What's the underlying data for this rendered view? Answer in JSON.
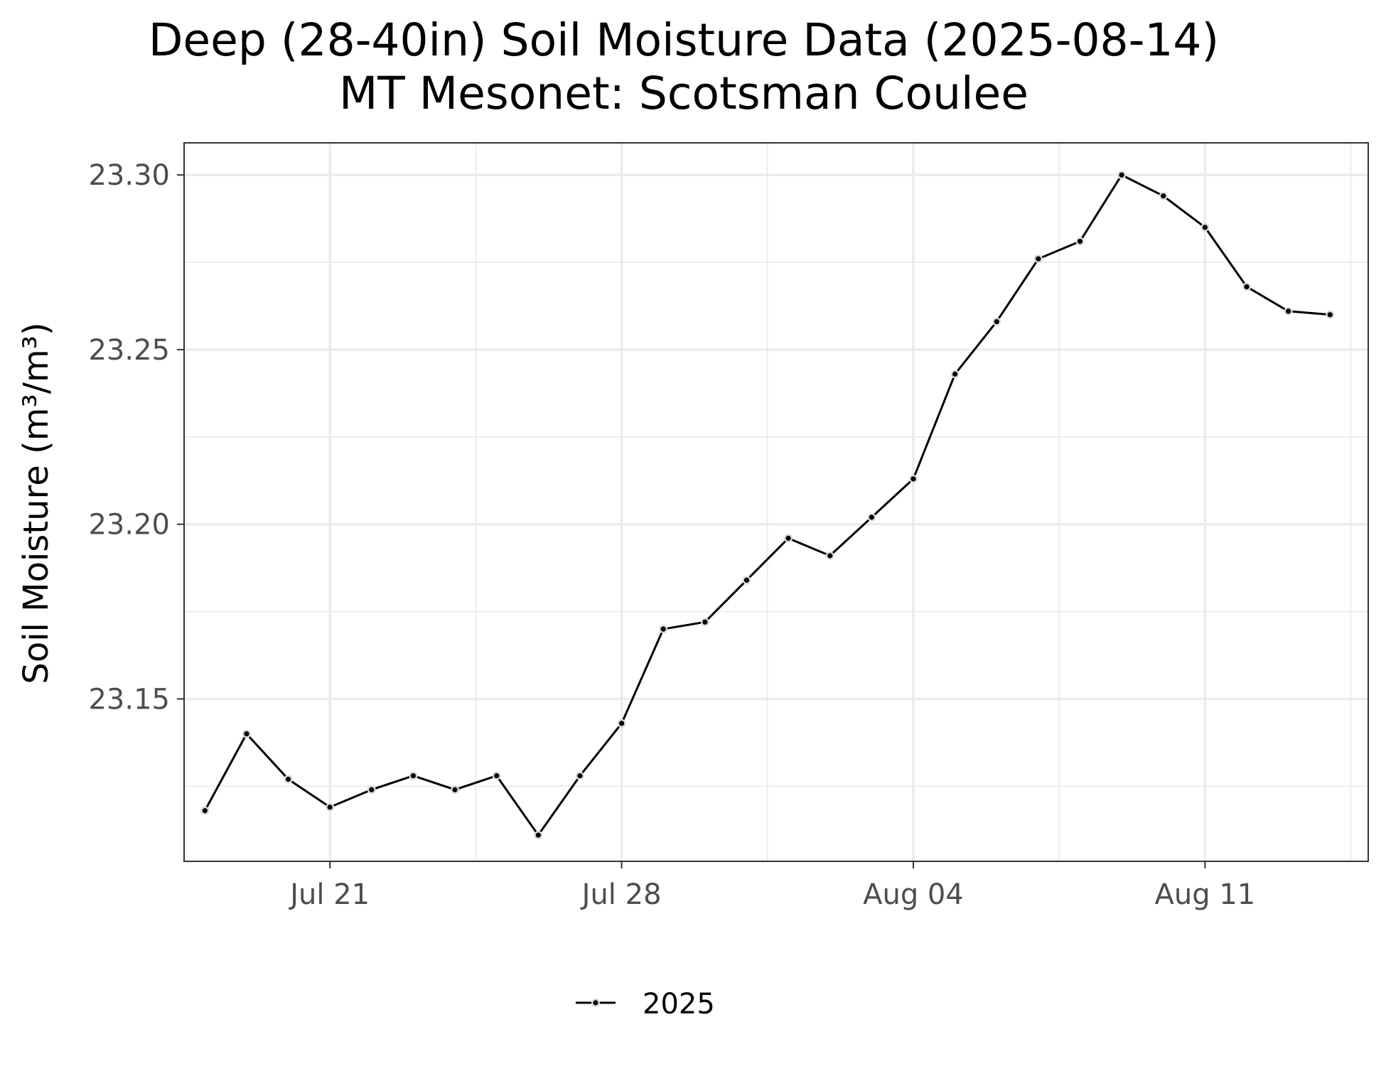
{
  "chart_data": {
    "type": "line",
    "title": "Deep (28-40in) Soil Moisture Data (2025-08-14)",
    "subtitle": "MT Mesonet: Scotsman Coulee",
    "xlabel": "",
    "ylabel": "Soil Moisture (m³/m³)",
    "x_ticks": [
      {
        "date": "2025-07-21",
        "label": "Jul 21"
      },
      {
        "date": "2025-07-28",
        "label": "Jul 28"
      },
      {
        "date": "2025-08-04",
        "label": "Aug 04"
      },
      {
        "date": "2025-08-11",
        "label": "Aug 11"
      }
    ],
    "y_ticks": [
      {
        "value": 23.15,
        "label": "23.15"
      },
      {
        "value": 23.2,
        "label": "23.20"
      },
      {
        "value": 23.25,
        "label": "23.25"
      },
      {
        "value": 23.3,
        "label": "23.30"
      }
    ],
    "xlim": [
      "2025-07-17 12:00",
      "2025-08-14 22:00"
    ],
    "ylim": [
      23.1035,
      23.3092
    ],
    "grid": true,
    "legend_position": "bottom",
    "series": [
      {
        "name": "2025",
        "color": "#000000",
        "x": [
          "2025-07-18",
          "2025-07-19",
          "2025-07-20",
          "2025-07-21",
          "2025-07-22",
          "2025-07-23",
          "2025-07-24",
          "2025-07-25",
          "2025-07-26",
          "2025-07-27",
          "2025-07-28",
          "2025-07-29",
          "2025-07-30",
          "2025-07-31",
          "2025-08-01",
          "2025-08-02",
          "2025-08-03",
          "2025-08-04",
          "2025-08-05",
          "2025-08-06",
          "2025-08-07",
          "2025-08-08",
          "2025-08-09",
          "2025-08-10",
          "2025-08-11",
          "2025-08-12",
          "2025-08-13",
          "2025-08-14"
        ],
        "y": [
          23.118,
          23.14,
          23.127,
          23.119,
          23.124,
          23.128,
          23.124,
          23.128,
          23.111,
          23.128,
          23.143,
          23.17,
          23.172,
          23.184,
          23.196,
          23.191,
          23.202,
          23.213,
          23.243,
          23.258,
          23.276,
          23.281,
          23.3,
          23.294,
          23.285,
          23.268,
          23.261,
          23.26
        ]
      }
    ]
  }
}
